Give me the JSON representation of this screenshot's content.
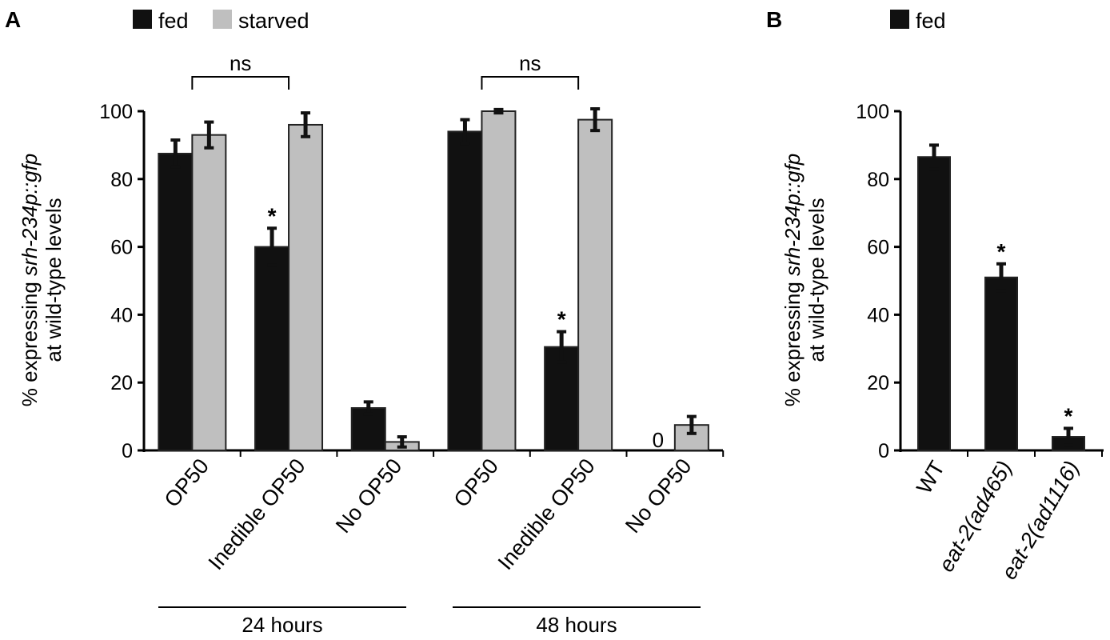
{
  "chart_data": [
    {
      "panel_label": "A",
      "type": "bar",
      "ylabel": {
        "prefix": "% expressing ",
        "italic": "srh-234p::gfp",
        "line2": "at wild-type levels"
      },
      "ylim": [
        0,
        100
      ],
      "yticks": [
        "0",
        "20",
        "40",
        "60",
        "80",
        "100"
      ],
      "categories": [
        "OP50",
        "Inedible OP50",
        "No OP50",
        "OP50",
        "Inedible OP50",
        "No OP50"
      ],
      "groups": [
        "24 hours",
        "48 hours"
      ],
      "series": [
        {
          "name": "fed",
          "color": "#111111",
          "values": [
            87.5,
            60,
            12.5,
            94,
            30.5,
            0
          ],
          "errors": [
            4,
            5.5,
            1.8,
            3.5,
            4.5,
            0
          ]
        },
        {
          "name": "starved",
          "color": "#bfbfbf",
          "values": [
            93,
            96,
            2.5,
            100,
            97.5,
            7.5
          ],
          "errors": [
            3.8,
            3.5,
            1.5,
            0.5,
            3.2,
            2.5
          ]
        }
      ],
      "significance": [
        {
          "category_index": 1,
          "series": "fed",
          "mark": "*"
        },
        {
          "category_index": 4,
          "series": "fed",
          "mark": "*"
        }
      ],
      "brackets": [
        {
          "from_category": 0,
          "to_category": 1,
          "label": "ns"
        },
        {
          "from_category": 3,
          "to_category": 4,
          "label": "ns"
        }
      ],
      "zero_labels": [
        {
          "category_index": 5,
          "series": "fed",
          "text": "0"
        }
      ],
      "legend": "top"
    },
    {
      "panel_label": "B",
      "type": "bar",
      "ylabel": {
        "prefix": "% expressing ",
        "italic": "srh-234p::gfp",
        "line2": "at wild-type levels"
      },
      "ylim": [
        0,
        100
      ],
      "yticks": [
        "0",
        "20",
        "40",
        "60",
        "80",
        "100"
      ],
      "categories": [
        "WT",
        "eat-2(ad465)",
        "eat-2(ad1116)"
      ],
      "categories_italic": [
        false,
        true,
        true
      ],
      "series": [
        {
          "name": "fed",
          "color": "#111111",
          "values": [
            86.5,
            51,
            4
          ],
          "errors": [
            3.5,
            4,
            2.5
          ]
        }
      ],
      "significance": [
        {
          "category_index": 1,
          "series": "fed",
          "mark": "*"
        },
        {
          "category_index": 2,
          "series": "fed",
          "mark": "*"
        }
      ],
      "legend": "top"
    }
  ]
}
